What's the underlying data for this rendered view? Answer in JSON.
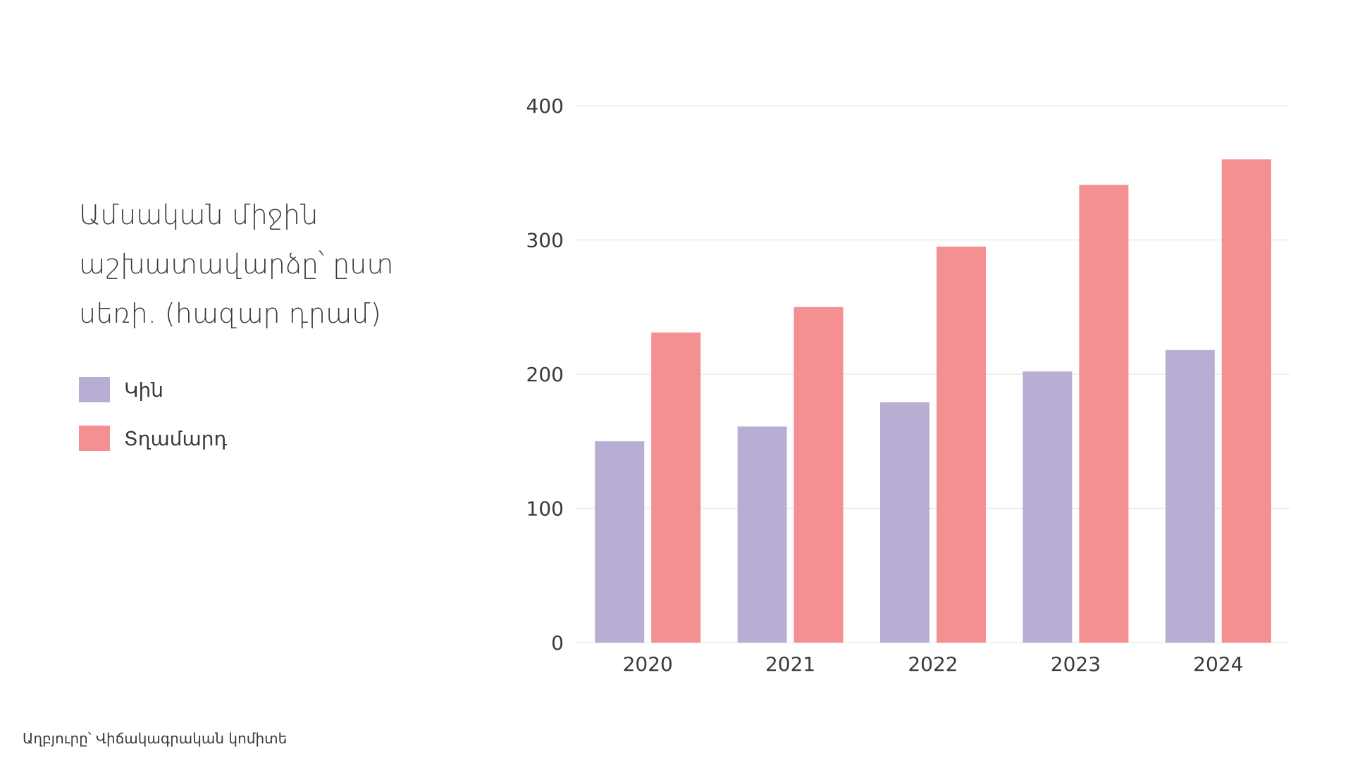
{
  "chart_data": {
    "type": "bar",
    "title": "Ամսական միջին աշխատավարձը՝ ըստ սեռի. (հազար դրամ)",
    "title_lines": [
      "Ամսական միջին",
      "աշխատավարձը՝ ըստ",
      "սեռի. (հազար դրամ)"
    ],
    "categories": [
      "2020",
      "2021",
      "2022",
      "2023",
      "2024"
    ],
    "series": [
      {
        "name": "Կին",
        "color": "#b8aed4",
        "values": [
          150,
          161,
          179,
          202,
          218
        ]
      },
      {
        "name": "Տղամարդ",
        "color": "#f48f92",
        "values": [
          231,
          250,
          295,
          341,
          360
        ]
      }
    ],
    "y_ticks": [
      0,
      100,
      200,
      300,
      400
    ],
    "ylim": [
      0,
      400
    ],
    "grid": true,
    "legend_position": "left"
  },
  "source": "Աղբյուրը՝ Վիճակագրական կոմիտե"
}
